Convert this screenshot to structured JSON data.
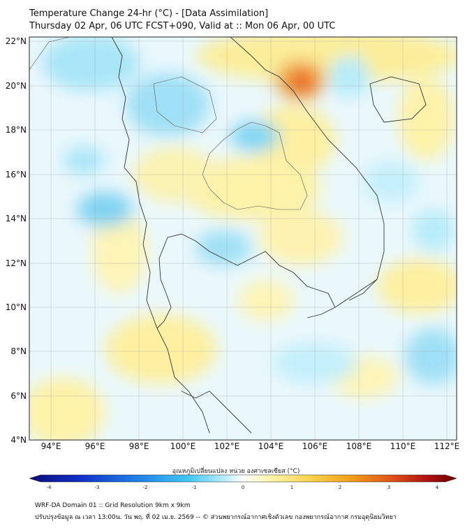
{
  "title_line1": "Temperature Change 24-hr (°C) - [Data Assimilation]",
  "title_line2": "Thursday 02 Apr, 06 UTC FCST+090, Valid at :: Mon 06 Apr, 00 UTC",
  "lat_labels": [
    "22°N",
    "20°N",
    "18°N",
    "16°N",
    "14°N",
    "12°N",
    "10°N",
    "8°N",
    "6°N",
    "4°N"
  ],
  "lon_labels": [
    "94°E",
    "96°E",
    "98°E",
    "100°E",
    "102°E",
    "104°E",
    "106°E",
    "108°E",
    "110°E",
    "112°E"
  ],
  "colorbar": {
    "title": "อุณหภูมิเปลี่ยนแปลง หน่วย องศาเซลเซียส (°C)",
    "ticks": [
      "-4",
      "-3",
      "-2",
      "-1",
      "0",
      "1",
      "2",
      "3",
      "4"
    ],
    "colors": [
      "#0a0a7a",
      "#1030c8",
      "#1f7fe8",
      "#3fc6f2",
      "#bfeefb",
      "#ffffff",
      "#fff7b0",
      "#f7d24a",
      "#f2a01c",
      "#e0501a",
      "#b01010",
      "#6a0000"
    ]
  },
  "footer_line1": "WRF-DA Domain 01 :: Grid Resolution 9km x 9km",
  "footer_line2": "ปรับปรุงข้อมูล ณ เวลา 13:00น. วัน พฤ. ที่ 02 เม.ย. 2569 -- © ส่วนพยากรณ์อากาศเชิงตัวเลข กองพยากรณ์อากาศ กรมอุตุนิยมวิทยา"
}
